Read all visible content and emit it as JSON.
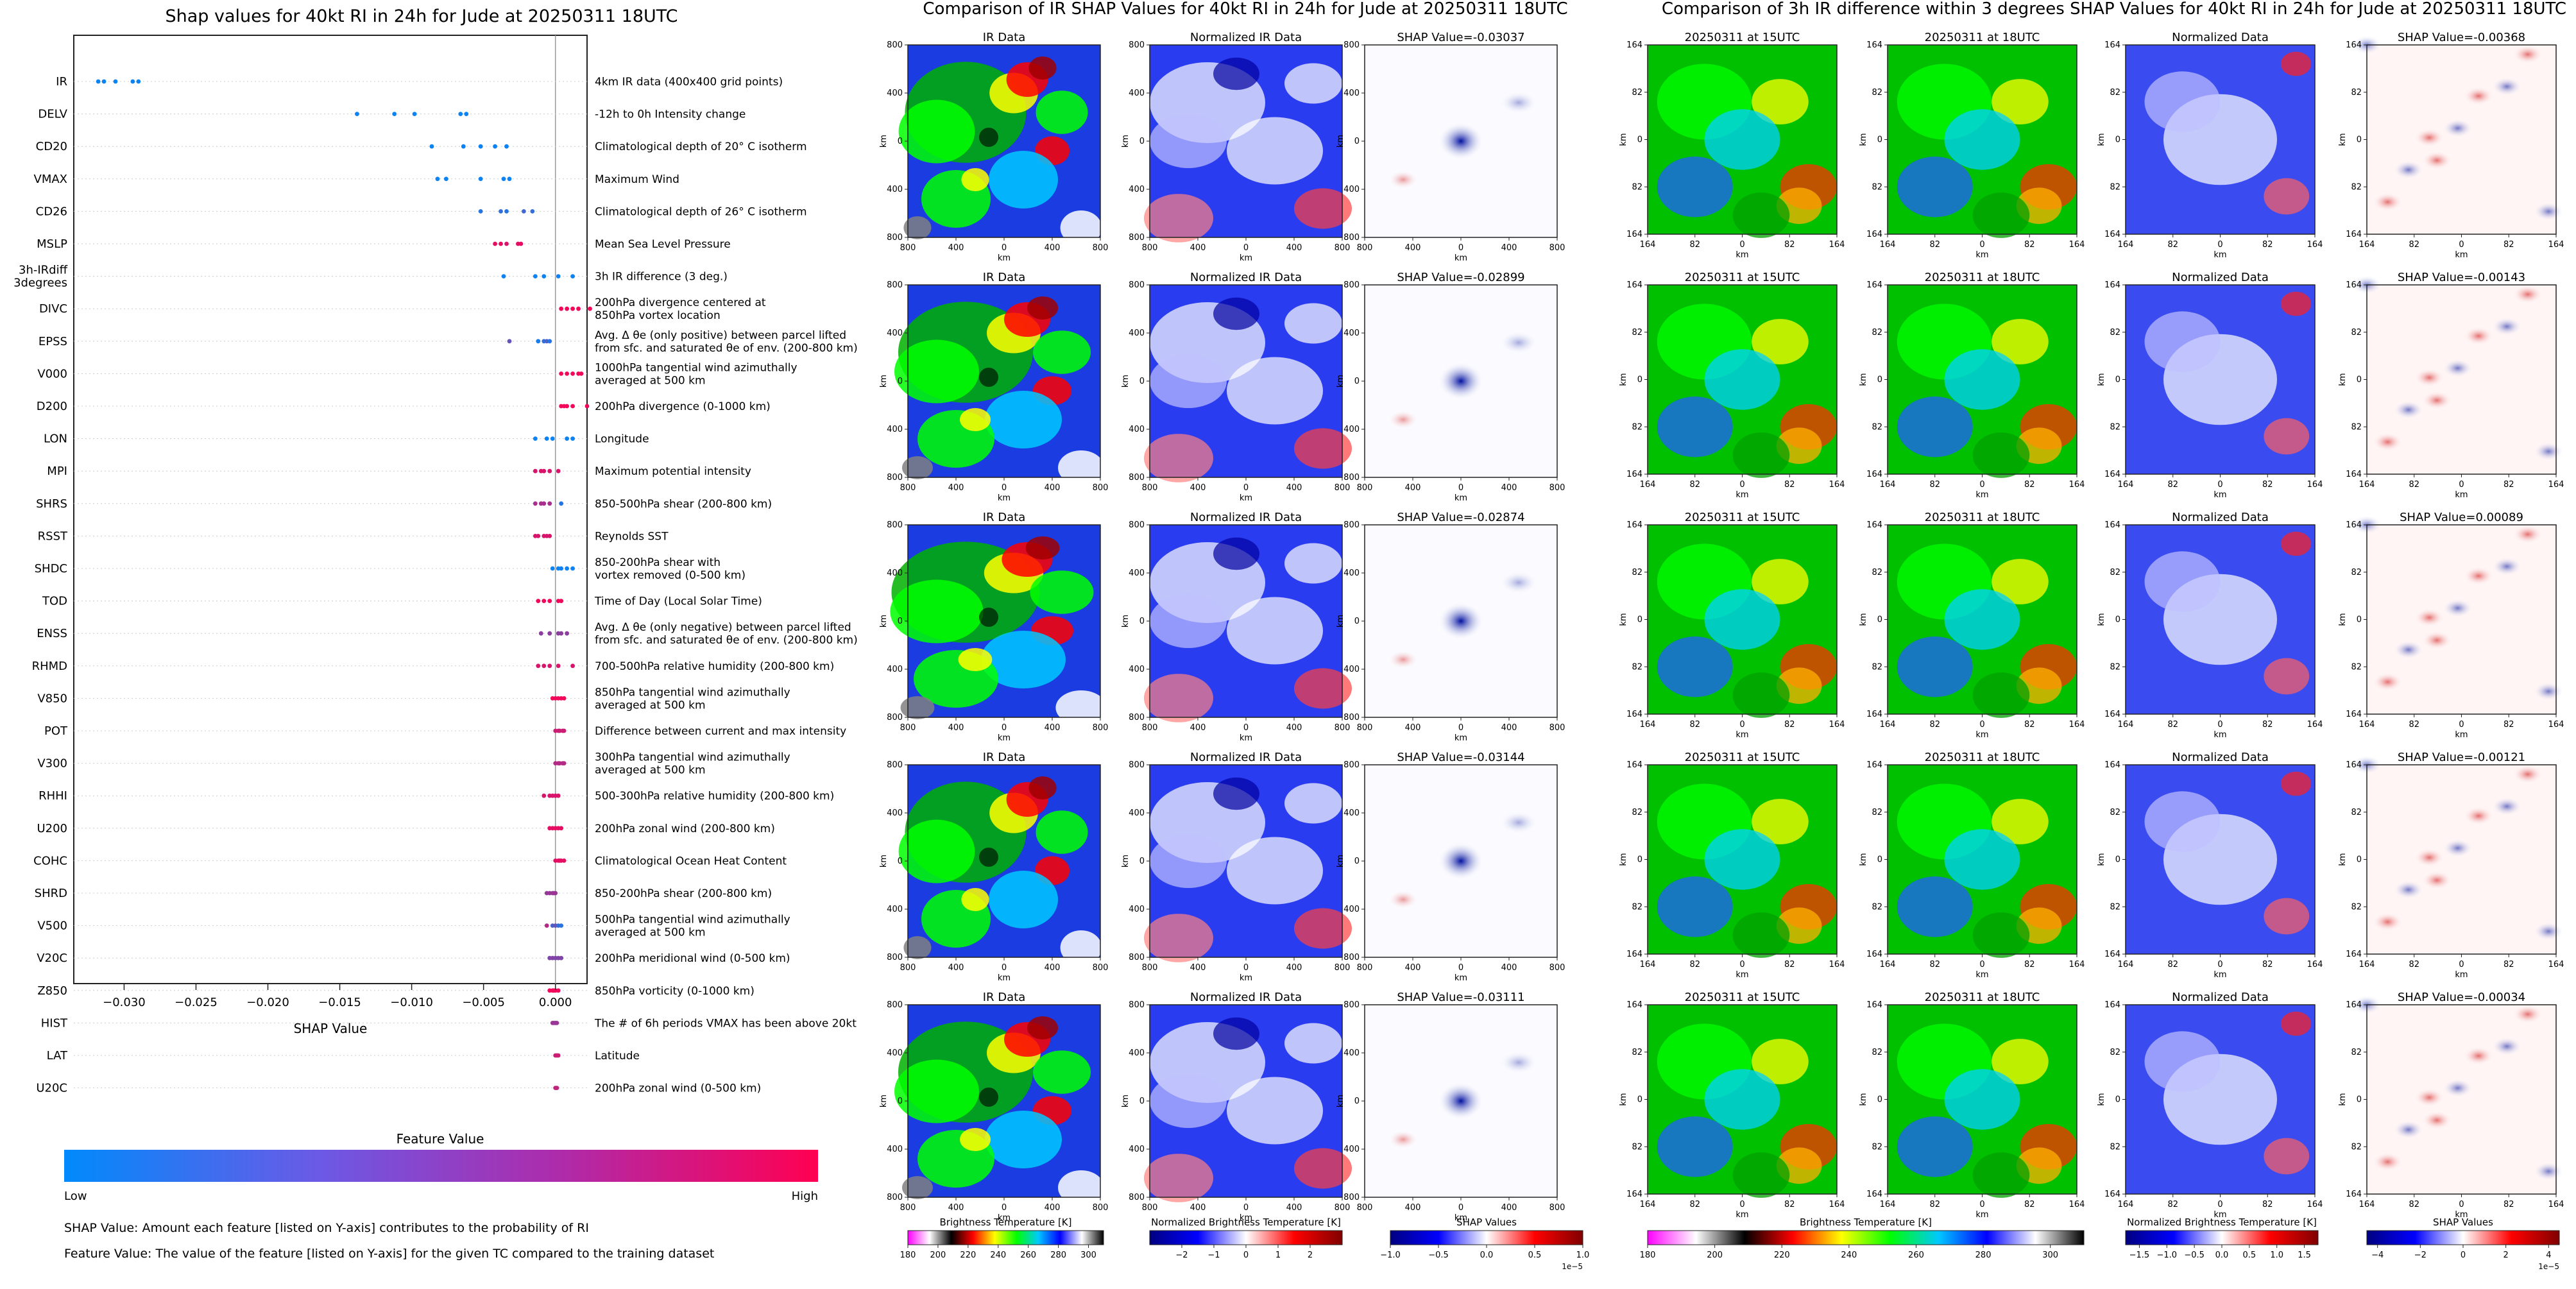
{
  "chart_data": [
    {
      "type": "scatter",
      "title": "Shap values for 40kt RI in 24h for Jude at 20250311 18UTC",
      "xlabel": "SHAP Value",
      "xlim": [
        -0.0335,
        0.0022
      ],
      "xticks": [
        -0.03,
        -0.025,
        -0.02,
        -0.015,
        -0.01,
        -0.005,
        0.0
      ],
      "xtick_labels": [
        "−0.030",
        "−0.025",
        "−0.020",
        "−0.015",
        "−0.010",
        "−0.005",
        "0.000"
      ],
      "colorbar": {
        "title": "Feature Value",
        "low_label": "Low",
        "high_label": "High",
        "low_color": "#008afb",
        "high_color": "#ff0052"
      },
      "notes": [
        "SHAP Value: Amount each feature [listed on Y-axis] contributes to the probability of RI",
        "Feature Value: The value of the feature [listed on Y-axis] for the given TC compared to the training dataset"
      ],
      "features": [
        {
          "name": "IR",
          "description": [
            "4km IR data (400x400 grid points)"
          ],
          "values": [
            -0.0318,
            -0.0314,
            -0.0306,
            -0.0294,
            -0.029
          ],
          "feature_values": [
            0.05,
            0.05,
            0.05,
            0.05,
            0.05
          ]
        },
        {
          "name": "DELV",
          "description": [
            "-12h to 0h Intensity change"
          ],
          "values": [
            -0.0138,
            -0.0112,
            -0.0098,
            -0.0066,
            -0.0062
          ],
          "feature_values": [
            0.05,
            0.05,
            0.05,
            0.05,
            0.05
          ]
        },
        {
          "name": "CD20",
          "description": [
            "Climatological depth of 20° C isotherm"
          ],
          "values": [
            -0.0086,
            -0.0064,
            -0.0052,
            -0.0042,
            -0.0034
          ],
          "feature_values": [
            0.05,
            0.05,
            0.05,
            0.05,
            0.05
          ]
        },
        {
          "name": "VMAX",
          "description": [
            "Maximum Wind"
          ],
          "values": [
            -0.0082,
            -0.0076,
            -0.0052,
            -0.0036,
            -0.0032
          ],
          "feature_values": [
            0.05,
            0.05,
            0.05,
            0.05,
            0.05
          ]
        },
        {
          "name": "CD26",
          "description": [
            "Climatological depth of 26° C isotherm"
          ],
          "values": [
            -0.0052,
            -0.0038,
            -0.0034,
            -0.0022,
            -0.0016
          ],
          "feature_values": [
            0.15,
            0.2,
            0.15,
            0.25,
            0.2
          ]
        },
        {
          "name": "MSLP",
          "description": [
            "Mean Sea Level Pressure"
          ],
          "values": [
            -0.0042,
            -0.0038,
            -0.0034,
            -0.0026,
            -0.0024
          ],
          "feature_values": [
            0.9,
            0.9,
            0.85,
            0.9,
            0.9
          ]
        },
        {
          "name": "3h-IRdiff\n3degrees",
          "description": [
            "3h IR difference (3 deg.)"
          ],
          "values": [
            -0.0036,
            -0.0014,
            -0.0008,
            0.0002,
            0.0012
          ],
          "feature_values": [
            0.05,
            0.05,
            0.05,
            0.05,
            0.05
          ]
        },
        {
          "name": "DIVC",
          "description": [
            "200hPa divergence centered at",
            "850hPa vortex location"
          ],
          "values": [
            0.0004,
            0.0008,
            0.0012,
            0.0016,
            0.0024
          ],
          "feature_values": [
            0.95,
            0.95,
            0.95,
            0.95,
            0.95
          ]
        },
        {
          "name": "EPSS",
          "description": [
            "Avg. Δ θe (only positive) between parcel lifted",
            "from sfc. and saturated θe of env. (200-800 km)"
          ],
          "values": [
            -0.0032,
            -0.0012,
            -0.0008,
            -0.0006,
            -0.0004
          ],
          "feature_values": [
            0.4,
            0.1,
            0.2,
            0.3,
            0.15
          ]
        },
        {
          "name": "V000",
          "description": [
            "1000hPa tangential wind azimuthally",
            "averaged at 500 km"
          ],
          "values": [
            0.0004,
            0.0008,
            0.0012,
            0.0016,
            0.0018
          ],
          "feature_values": [
            0.95,
            0.95,
            0.95,
            0.95,
            0.95
          ]
        },
        {
          "name": "D200",
          "description": [
            "200hPa divergence (0-1000 km)"
          ],
          "values": [
            0.0004,
            0.0006,
            0.0008,
            0.0012,
            0.0022
          ],
          "feature_values": [
            0.95,
            0.95,
            0.95,
            0.95,
            0.95
          ]
        },
        {
          "name": "LON",
          "description": [
            "Longitude"
          ],
          "values": [
            -0.0014,
            -0.0006,
            -0.0002,
            0.0008,
            0.0012
          ],
          "feature_values": [
            0.05,
            0.05,
            0.05,
            0.05,
            0.05
          ]
        },
        {
          "name": "MPI",
          "description": [
            "Maximum potential intensity"
          ],
          "values": [
            -0.0014,
            -0.001,
            -0.0008,
            -0.0004,
            0.0002
          ],
          "feature_values": [
            0.85,
            0.85,
            0.85,
            0.85,
            0.85
          ]
        },
        {
          "name": "SHRS",
          "description": [
            "850-500hPa shear (200-800 km)"
          ],
          "values": [
            -0.0014,
            -0.001,
            -0.0008,
            -0.0004,
            0.0004
          ],
          "feature_values": [
            0.65,
            0.65,
            0.65,
            0.65,
            0.15
          ]
        },
        {
          "name": "RSST",
          "description": [
            "Reynolds SST"
          ],
          "values": [
            -0.0014,
            -0.0012,
            -0.0008,
            -0.0006,
            -0.0004
          ],
          "feature_values": [
            0.85,
            0.85,
            0.85,
            0.85,
            0.85
          ]
        },
        {
          "name": "SHDC",
          "description": [
            "850-200hPa shear with",
            "vortex removed (0-500 km)"
          ],
          "values": [
            -0.0002,
            0.0002,
            0.0004,
            0.0008,
            0.0012
          ],
          "feature_values": [
            0.05,
            0.05,
            0.05,
            0.05,
            0.05
          ]
        },
        {
          "name": "TOD",
          "description": [
            "Time of Day (Local Solar Time)"
          ],
          "values": [
            -0.0012,
            -0.0008,
            -0.0004,
            0.0002,
            0.0004
          ],
          "feature_values": [
            0.95,
            0.95,
            0.95,
            0.95,
            0.95
          ]
        },
        {
          "name": "ENSS",
          "description": [
            "Avg. Δ θe (only negative) between parcel lifted",
            "from sfc. and saturated θe of env. (200-800 km)"
          ],
          "values": [
            -0.001,
            -0.0004,
            0.0002,
            0.0004,
            0.0008
          ],
          "feature_values": [
            0.55,
            0.55,
            0.55,
            0.55,
            0.55
          ]
        },
        {
          "name": "RHMD",
          "description": [
            "700-500hPa relative humidity (200-800 km)"
          ],
          "values": [
            -0.0012,
            -0.0008,
            -0.0004,
            0.0002,
            0.0012
          ],
          "feature_values": [
            0.85,
            0.85,
            0.85,
            0.85,
            0.85
          ]
        },
        {
          "name": "V850",
          "description": [
            "850hPa tangential wind azimuthally",
            "averaged at 500 km"
          ],
          "values": [
            -0.0002,
            0.0,
            0.0002,
            0.0004,
            0.0006
          ],
          "feature_values": [
            0.95,
            0.95,
            0.95,
            0.95,
            0.95
          ]
        },
        {
          "name": "POT",
          "description": [
            "Difference between current and max intensity"
          ],
          "values": [
            0.0,
            0.0002,
            0.0003,
            0.0005,
            0.0006
          ],
          "feature_values": [
            0.8,
            0.8,
            0.8,
            0.8,
            0.8
          ]
        },
        {
          "name": "V300",
          "description": [
            "300hPa tangential wind azimuthally",
            "averaged at 500 km"
          ],
          "values": [
            0.0,
            0.0002,
            0.0003,
            0.0005,
            0.0006
          ],
          "feature_values": [
            0.7,
            0.7,
            0.7,
            0.7,
            0.7
          ]
        },
        {
          "name": "RHHI",
          "description": [
            "500-300hPa relative humidity (200-800 km)"
          ],
          "values": [
            -0.0008,
            -0.0004,
            -0.0002,
            0.0,
            0.0002
          ],
          "feature_values": [
            0.85,
            0.85,
            0.85,
            0.85,
            0.85
          ]
        },
        {
          "name": "U200",
          "description": [
            "200hPa zonal wind (200-800 km)"
          ],
          "values": [
            -0.0004,
            -0.0002,
            0.0,
            0.0002,
            0.0004
          ],
          "feature_values": [
            0.9,
            0.9,
            0.9,
            0.9,
            0.9
          ]
        },
        {
          "name": "COHC",
          "description": [
            "Climatological Ocean Heat Content"
          ],
          "values": [
            0.0,
            0.0002,
            0.0003,
            0.0004,
            0.0006
          ],
          "feature_values": [
            0.9,
            0.9,
            0.9,
            0.9,
            0.9
          ]
        },
        {
          "name": "SHRD",
          "description": [
            "850-200hPa shear (200-800 km)"
          ],
          "values": [
            -0.0006,
            -0.0004,
            -0.0002,
            -0.0001,
            0.0
          ],
          "feature_values": [
            0.6,
            0.6,
            0.6,
            0.6,
            0.6
          ]
        },
        {
          "name": "V500",
          "description": [
            "500hPa tangential wind azimuthally",
            "averaged at 500 km"
          ],
          "values": [
            -0.0006,
            -0.0002,
            0.0,
            0.0002,
            0.0004
          ],
          "feature_values": [
            0.7,
            0.3,
            0.4,
            0.2,
            0.15
          ]
        },
        {
          "name": "V20C",
          "description": [
            "200hPa meridional wind (0-500 km)"
          ],
          "values": [
            -0.0004,
            -0.0002,
            0.0,
            0.0002,
            0.0004
          ],
          "feature_values": [
            0.5,
            0.5,
            0.5,
            0.5,
            0.5
          ]
        },
        {
          "name": "Z850",
          "description": [
            "850hPa vorticity (0-1000 km)"
          ],
          "values": [
            -0.0004,
            -0.0002,
            -0.0001,
            0.0,
            0.0002
          ],
          "feature_values": [
            0.95,
            0.95,
            0.95,
            0.95,
            0.95
          ]
        },
        {
          "name": "HIST",
          "description": [
            "The # of 6h periods VMAX has been above 20kt"
          ],
          "values": [
            -0.0002,
            -0.0001,
            0.0,
            0.0001
          ],
          "feature_values": [
            0.6,
            0.6,
            0.6,
            0.6
          ]
        },
        {
          "name": "LAT",
          "description": [
            "Latitude"
          ],
          "values": [
            0.0,
            0.0001,
            0.0002
          ],
          "feature_values": [
            0.8,
            0.8,
            0.8
          ]
        },
        {
          "name": "U20C",
          "description": [
            "200hPa zonal wind (0-500 km)"
          ],
          "values": [
            0.0,
            0.0001
          ],
          "feature_values": [
            0.75,
            0.75
          ]
        }
      ]
    },
    {
      "type": "heatmap",
      "title": "Comparison of IR SHAP Values for 40kt RI in 24h for Jude at 20250311 18UTC",
      "panel_titles": [
        "IR Data",
        "Normalized IR Data"
      ],
      "shap_titles": [
        "SHAP Value=-0.03037",
        "SHAP Value=-0.02899",
        "SHAP Value=-0.02874",
        "SHAP Value=-0.03144",
        "SHAP Value=-0.03111"
      ],
      "shap_values": [
        -0.03037,
        -0.02899,
        -0.02874,
        -0.03144,
        -0.03111
      ],
      "xlabel": "km",
      "ylabel": "km",
      "ticks": [
        "800",
        "400",
        "0",
        "400",
        "800"
      ],
      "colorbars": [
        {
          "label": "Brightness Temperature [K]",
          "ticks": [
            "180",
            "200",
            "220",
            "240",
            "260",
            "280",
            "300"
          ],
          "range": [
            180,
            310
          ]
        },
        {
          "label": "Normalized Brightness Temperature [K]",
          "ticks": [
            "−2",
            "−1",
            "0",
            "1",
            "2"
          ],
          "range": [
            -3,
            3
          ]
        },
        {
          "label": "SHAP Values",
          "ticks": [
            "−1.0",
            "−0.5",
            "0.0",
            "0.5",
            "1.0"
          ],
          "range": [
            -1,
            1
          ],
          "multiplier": "1e−5"
        }
      ]
    },
    {
      "type": "heatmap",
      "title": "Comparison of 3h IR difference within 3 degrees SHAP Values for 40kt RI in 24h for Jude at 20250311 18UTC",
      "panel_titles": [
        "20250311 at 15UTC",
        "20250311 at 18UTC",
        "Normalized Data"
      ],
      "shap_titles": [
        "SHAP Value=-0.00368",
        "SHAP Value=-0.00143",
        "SHAP Value=0.00089",
        "SHAP Value=-0.00121",
        "SHAP Value=-0.00034"
      ],
      "shap_values": [
        -0.00368,
        -0.00143,
        0.00089,
        -0.00121,
        -0.00034
      ],
      "xlabel": "km",
      "ylabel": "km",
      "ticks": [
        "164",
        "82",
        "0",
        "82",
        "164"
      ],
      "colorbars": [
        {
          "label": "Brightness Temperature [K]",
          "ticks": [
            "180",
            "200",
            "220",
            "240",
            "260",
            "280",
            "300"
          ],
          "range": [
            180,
            310
          ]
        },
        {
          "label": "Normalized Brightness Temperature [K]",
          "ticks": [
            "−1.5",
            "−1.0",
            "−0.5",
            "0.0",
            "0.5",
            "1.0",
            "1.5"
          ],
          "range": [
            -1.75,
            1.75
          ]
        },
        {
          "label": "SHAP Values",
          "ticks": [
            "−4",
            "−2",
            "0",
            "2",
            "4"
          ],
          "range": [
            -4.5,
            4.5
          ],
          "multiplier": "1e−5"
        }
      ]
    }
  ],
  "colormaps": {
    "ir": [
      "#ff00ff",
      "#ffffff",
      "#000000",
      "#ff0000",
      "#ffff00",
      "#00ff00",
      "#00c8ff",
      "#0000ff",
      "#ffffff",
      "#000000"
    ],
    "rwb": [
      "#000080",
      "#0000ff",
      "#ffffff",
      "#ff0000",
      "#800000"
    ],
    "rwb_light": [
      "#0000ff",
      "#ffffff",
      "#ff0000"
    ]
  }
}
